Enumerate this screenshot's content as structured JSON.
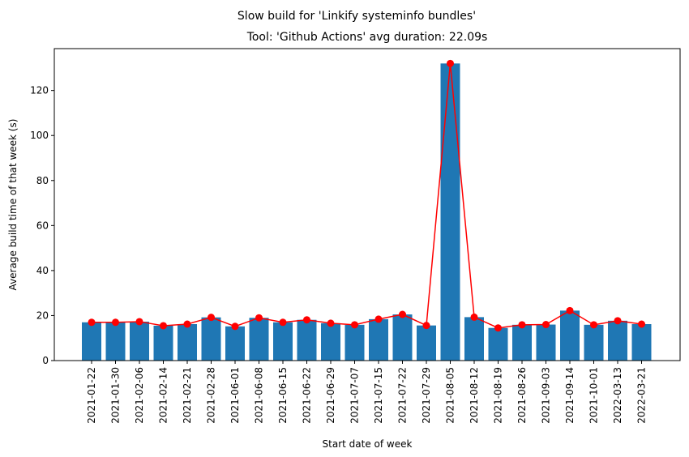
{
  "chart_data": {
    "type": "bar",
    "suptitle": "Slow build for 'Linkify systeminfo bundles'",
    "title": "Tool: 'Github Actions' avg duration: 22.09s",
    "xlabel": "Start date of week",
    "ylabel": "Average build time of that week (s)",
    "ylim": [
      0,
      138.6
    ],
    "yticks": [
      0,
      20,
      40,
      60,
      80,
      100,
      120
    ],
    "grid": false,
    "categories": [
      "2021-01-22",
      "2021-01-30",
      "2021-02-06",
      "2021-02-14",
      "2021-02-21",
      "2021-02-28",
      "2021-06-01",
      "2021-06-08",
      "2021-06-15",
      "2021-06-22",
      "2021-06-29",
      "2021-07-07",
      "2021-07-15",
      "2021-07-22",
      "2021-07-29",
      "2021-08-05",
      "2021-08-12",
      "2021-08-19",
      "2021-08-26",
      "2021-09-03",
      "2021-09-14",
      "2021-10-01",
      "2022-03-13",
      "2022-03-21"
    ],
    "values": [
      17.0,
      17.0,
      17.3,
      15.5,
      16.2,
      19.2,
      15.2,
      19.0,
      17.0,
      18.1,
      16.6,
      15.9,
      18.4,
      20.5,
      15.6,
      132.0,
      19.3,
      14.5,
      15.9,
      16.0,
      22.2,
      15.9,
      17.7,
      16.2
    ],
    "bar_color": "#1f77b4",
    "line_color": "#ff0000"
  }
}
